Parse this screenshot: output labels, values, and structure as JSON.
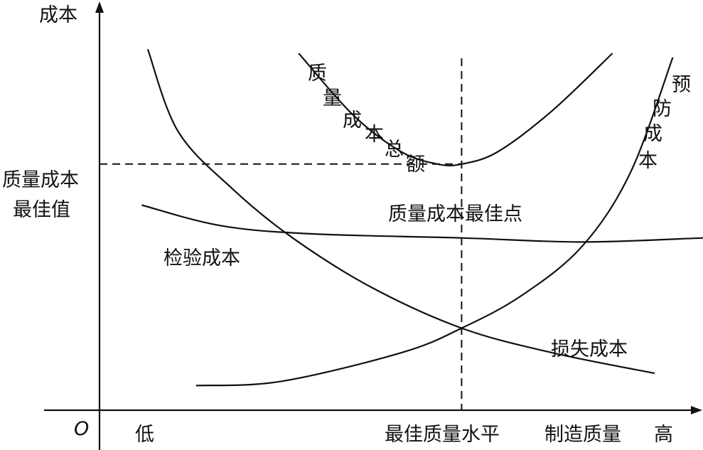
{
  "chart_data": {
    "type": "line",
    "ylabel": "成本",
    "origin_label": "O",
    "x_tick_labels": {
      "low": "低",
      "high": "高"
    },
    "xlabel": "制造质量",
    "optimal_x_label": "最佳质量水平",
    "optimal_y_label": [
      "质量成本",
      "最佳值"
    ],
    "optimal_point_label": "质量成本最佳点",
    "optimal_x": 0.6,
    "optimal_y": 0.6,
    "series": [
      {
        "name": "质量成本总额",
        "points": [
          [
            0.33,
            0.87
          ],
          [
            0.42,
            0.72
          ],
          [
            0.5,
            0.63
          ],
          [
            0.56,
            0.6
          ],
          [
            0.6,
            0.6
          ],
          [
            0.66,
            0.63
          ],
          [
            0.75,
            0.73
          ],
          [
            0.85,
            0.87
          ]
        ]
      },
      {
        "name": "预防成本",
        "points": [
          [
            0.16,
            0.06
          ],
          [
            0.3,
            0.07
          ],
          [
            0.5,
            0.14
          ],
          [
            0.6,
            0.2
          ],
          [
            0.7,
            0.28
          ],
          [
            0.8,
            0.4
          ],
          [
            0.88,
            0.58
          ],
          [
            0.95,
            0.86
          ]
        ]
      },
      {
        "name": "检验成本",
        "points": [
          [
            0.07,
            0.5
          ],
          [
            0.2,
            0.45
          ],
          [
            0.35,
            0.43
          ],
          [
            0.6,
            0.42
          ],
          [
            0.8,
            0.41
          ],
          [
            1.0,
            0.42
          ]
        ]
      },
      {
        "name": "损失成本",
        "points": [
          [
            0.08,
            0.88
          ],
          [
            0.13,
            0.68
          ],
          [
            0.22,
            0.54
          ],
          [
            0.32,
            0.42
          ],
          [
            0.45,
            0.3
          ],
          [
            0.6,
            0.2
          ],
          [
            0.75,
            0.14
          ],
          [
            0.92,
            0.09
          ]
        ]
      }
    ]
  }
}
